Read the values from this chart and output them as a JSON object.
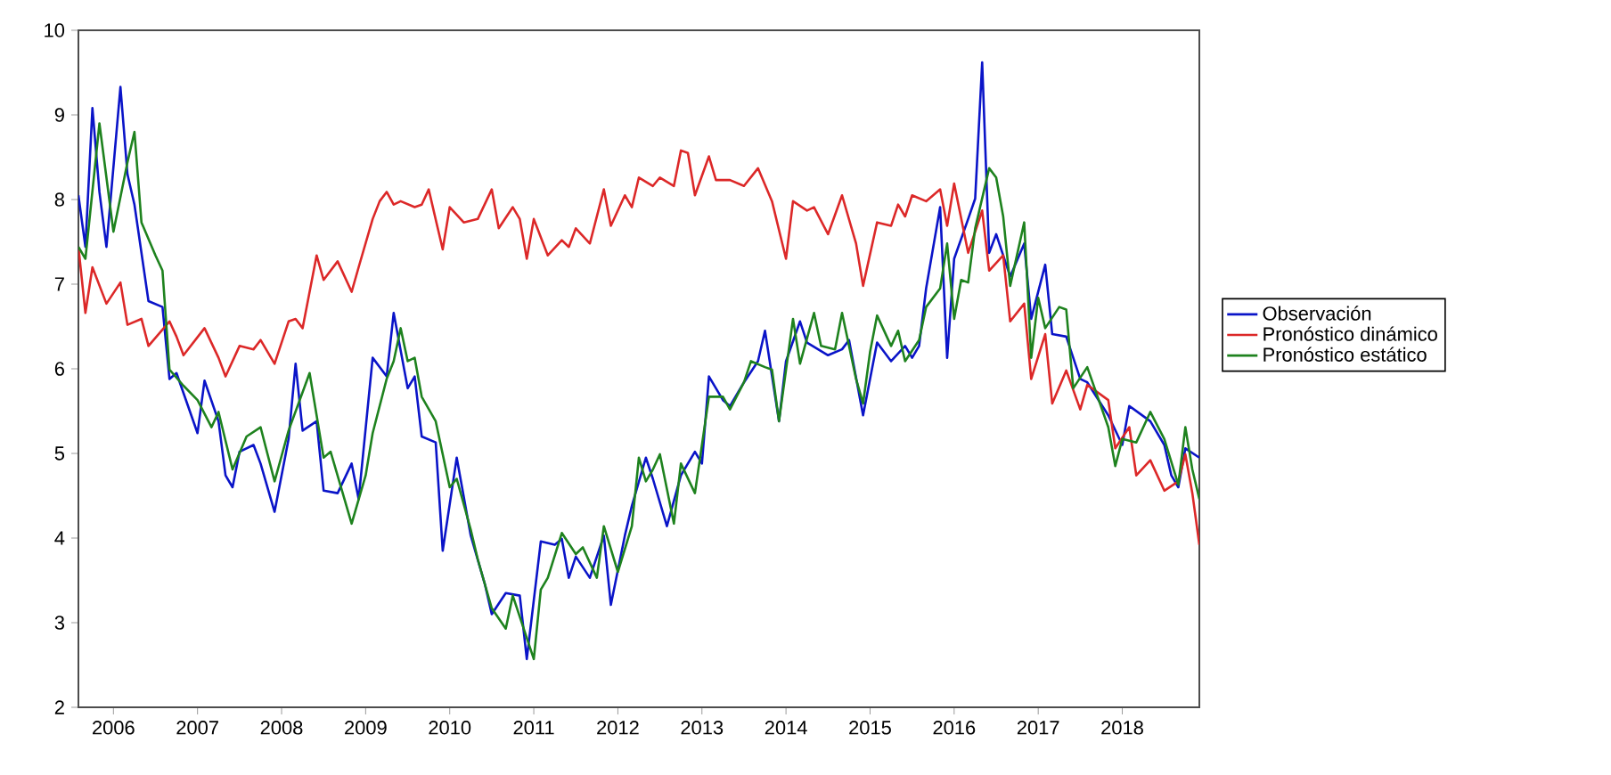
{
  "chart_data": {
    "type": "line",
    "xlim": [
      "2005-08",
      "2018-12"
    ],
    "ylim": [
      2,
      10
    ],
    "yticks": [
      2,
      3,
      4,
      5,
      6,
      7,
      8,
      9,
      10
    ],
    "xticks": [
      {
        "value": "2006-01",
        "label": "2006"
      },
      {
        "value": "2007-01",
        "label": "2007"
      },
      {
        "value": "2008-01",
        "label": "2008"
      },
      {
        "value": "2009-01",
        "label": "2009"
      },
      {
        "value": "2010-01",
        "label": "2010"
      },
      {
        "value": "2011-01",
        "label": "2011"
      },
      {
        "value": "2012-01",
        "label": "2012"
      },
      {
        "value": "2013-01",
        "label": "2013"
      },
      {
        "value": "2014-01",
        "label": "2014"
      },
      {
        "value": "2015-01",
        "label": "2015"
      },
      {
        "value": "2016-01",
        "label": "2016"
      },
      {
        "value": "2017-01",
        "label": "2017"
      },
      {
        "value": "2018-01",
        "label": "2018"
      }
    ],
    "legend": "right",
    "grid": false,
    "series": [
      {
        "name": "Observación",
        "color": "#0a14c8",
        "x": [
          "2005-08",
          "2005-09",
          "2005-10",
          "2005-11",
          "2005-12",
          "2006-02",
          "2006-03",
          "2006-04",
          "2006-06",
          "2006-08",
          "2006-09",
          "2006-10",
          "2007-01",
          "2007-02",
          "2007-04",
          "2007-05",
          "2007-06",
          "2007-07",
          "2007-09",
          "2007-10",
          "2007-12",
          "2008-02",
          "2008-03",
          "2008-04",
          "2008-06",
          "2008-07",
          "2008-09",
          "2008-11",
          "2008-12",
          "2009-02",
          "2009-04",
          "2009-05",
          "2009-07",
          "2009-08",
          "2009-09",
          "2009-11",
          "2009-12",
          "2010-02",
          "2010-04",
          "2010-06",
          "2010-07",
          "2010-09",
          "2010-11",
          "2010-12",
          "2011-02",
          "2011-04",
          "2011-05",
          "2011-06",
          "2011-07",
          "2011-09",
          "2011-11",
          "2011-12",
          "2012-02",
          "2012-03",
          "2012-05",
          "2012-06",
          "2012-08",
          "2012-10",
          "2012-12",
          "2013-01",
          "2013-02",
          "2013-04",
          "2013-05",
          "2013-07",
          "2013-09",
          "2013-10",
          "2013-12",
          "2014-01",
          "2014-03",
          "2014-04",
          "2014-07",
          "2014-09",
          "2014-10",
          "2014-12",
          "2015-02",
          "2015-04",
          "2015-06",
          "2015-07",
          "2015-08",
          "2015-09",
          "2015-11",
          "2015-12",
          "2016-01",
          "2016-03",
          "2016-04",
          "2016-05",
          "2016-06",
          "2016-07",
          "2016-08",
          "2016-09",
          "2016-11",
          "2016-12",
          "2017-02",
          "2017-03",
          "2017-05",
          "2017-07",
          "2017-08",
          "2017-11",
          "2018-01",
          "2018-02",
          "2018-05",
          "2018-07",
          "2018-08",
          "2018-09",
          "2018-10",
          "2018-12"
        ],
        "values": [
          8.05,
          7.44,
          9.08,
          8.09,
          7.44,
          9.33,
          8.3,
          7.94,
          6.8,
          6.73,
          5.88,
          5.95,
          5.24,
          5.86,
          5.38,
          4.74,
          4.6,
          5.02,
          5.1,
          4.88,
          4.31,
          5.17,
          6.06,
          5.27,
          5.38,
          4.56,
          4.53,
          4.88,
          4.46,
          6.13,
          5.91,
          6.66,
          5.77,
          5.91,
          5.2,
          5.13,
          3.85,
          4.95,
          4.03,
          3.46,
          3.1,
          3.35,
          3.32,
          2.57,
          3.96,
          3.92,
          3.99,
          3.53,
          3.78,
          3.53,
          4.03,
          3.21,
          4.03,
          4.38,
          4.95,
          4.7,
          4.14,
          4.74,
          5.02,
          4.88,
          5.91,
          5.63,
          5.56,
          5.84,
          6.09,
          6.45,
          5.38,
          6.09,
          6.56,
          6.31,
          6.16,
          6.23,
          6.34,
          5.45,
          6.31,
          6.09,
          6.27,
          6.13,
          6.27,
          6.95,
          7.91,
          6.13,
          7.3,
          7.77,
          8.01,
          9.62,
          7.37,
          7.59,
          7.34,
          7.09,
          7.48,
          6.59,
          7.23,
          6.41,
          6.38,
          5.88,
          5.84,
          5.45,
          5.1,
          5.56,
          5.38,
          5.1,
          4.74,
          4.6,
          5.06,
          4.95
        ]
      },
      {
        "name": "Pronóstico dinámico",
        "color": "#dc2828",
        "x": [
          "2005-08",
          "2005-09",
          "2005-10",
          "2005-12",
          "2006-02",
          "2006-03",
          "2006-05",
          "2006-06",
          "2006-09",
          "2006-10",
          "2006-11",
          "2007-02",
          "2007-04",
          "2007-05",
          "2007-07",
          "2007-09",
          "2007-10",
          "2007-12",
          "2008-02",
          "2008-03",
          "2008-04",
          "2008-06",
          "2008-07",
          "2008-09",
          "2008-11",
          "2008-12",
          "2009-02",
          "2009-03",
          "2009-04",
          "2009-05",
          "2009-06",
          "2009-08",
          "2009-09",
          "2009-10",
          "2009-12",
          "2010-01",
          "2010-03",
          "2010-05",
          "2010-07",
          "2010-08",
          "2010-10",
          "2010-11",
          "2010-12",
          "2011-01",
          "2011-03",
          "2011-05",
          "2011-06",
          "2011-07",
          "2011-09",
          "2011-11",
          "2011-12",
          "2012-02",
          "2012-03",
          "2012-04",
          "2012-06",
          "2012-07",
          "2012-09",
          "2012-10",
          "2012-11",
          "2012-12",
          "2013-02",
          "2013-03",
          "2013-05",
          "2013-07",
          "2013-09",
          "2013-11",
          "2014-01",
          "2014-02",
          "2014-04",
          "2014-05",
          "2014-07",
          "2014-09",
          "2014-11",
          "2014-12",
          "2015-02",
          "2015-04",
          "2015-05",
          "2015-06",
          "2015-07",
          "2015-09",
          "2015-11",
          "2015-12",
          "2016-01",
          "2016-03",
          "2016-05",
          "2016-06",
          "2016-08",
          "2016-09",
          "2016-11",
          "2016-12",
          "2017-02",
          "2017-03",
          "2017-05",
          "2017-07",
          "2017-08",
          "2017-11",
          "2017-12",
          "2018-02",
          "2018-03",
          "2018-05",
          "2018-07",
          "2018-09",
          "2018-10",
          "2018-11",
          "2018-12"
        ],
        "values": [
          7.44,
          6.66,
          7.2,
          6.77,
          7.02,
          6.52,
          6.59,
          6.27,
          6.56,
          6.38,
          6.16,
          6.48,
          6.13,
          5.91,
          6.27,
          6.23,
          6.34,
          6.06,
          6.56,
          6.59,
          6.48,
          7.34,
          7.05,
          7.27,
          6.91,
          7.2,
          7.77,
          7.98,
          8.09,
          7.94,
          7.98,
          7.91,
          7.94,
          8.12,
          7.41,
          7.91,
          7.73,
          7.77,
          8.12,
          7.66,
          7.91,
          7.77,
          7.3,
          7.77,
          7.34,
          7.52,
          7.44,
          7.66,
          7.48,
          8.12,
          7.69,
          8.05,
          7.91,
          8.26,
          8.16,
          8.26,
          8.16,
          8.58,
          8.55,
          8.05,
          8.51,
          8.23,
          8.23,
          8.16,
          8.37,
          7.98,
          7.3,
          7.98,
          7.87,
          7.91,
          7.59,
          8.05,
          7.48,
          6.98,
          7.73,
          7.69,
          7.94,
          7.8,
          8.05,
          7.98,
          8.12,
          7.69,
          8.19,
          7.37,
          7.87,
          7.16,
          7.34,
          6.56,
          6.77,
          5.88,
          6.41,
          5.59,
          5.98,
          5.52,
          5.81,
          5.63,
          5.06,
          5.31,
          4.74,
          4.92,
          4.56,
          4.67,
          4.99,
          4.53,
          3.92
        ]
      },
      {
        "name": "Pronóstico estático",
        "color": "#1e821e",
        "x": [
          "2005-08",
          "2005-09",
          "2005-11",
          "2006-01",
          "2006-03",
          "2006-04",
          "2006-05",
          "2006-07",
          "2006-08",
          "2006-09",
          "2006-11",
          "2007-01",
          "2007-03",
          "2007-04",
          "2007-06",
          "2007-08",
          "2007-10",
          "2007-12",
          "2008-02",
          "2008-05",
          "2008-07",
          "2008-08",
          "2008-11",
          "2009-01",
          "2009-02",
          "2009-04",
          "2009-05",
          "2009-06",
          "2009-07",
          "2009-08",
          "2009-09",
          "2009-11",
          "2010-01",
          "2010-02",
          "2010-04",
          "2010-05",
          "2010-07",
          "2010-09",
          "2010-10",
          "2011-01",
          "2011-02",
          "2011-03",
          "2011-05",
          "2011-07",
          "2011-08",
          "2011-10",
          "2011-11",
          "2012-01",
          "2012-03",
          "2012-04",
          "2012-05",
          "2012-06",
          "2012-07",
          "2012-09",
          "2012-10",
          "2012-12",
          "2013-02",
          "2013-04",
          "2013-05",
          "2013-07",
          "2013-08",
          "2013-10",
          "2013-11",
          "2013-12",
          "2014-02",
          "2014-03",
          "2014-05",
          "2014-06",
          "2014-08",
          "2014-09",
          "2014-11",
          "2014-12",
          "2015-01",
          "2015-02",
          "2015-04",
          "2015-05",
          "2015-06",
          "2015-08",
          "2015-09",
          "2015-11",
          "2015-12",
          "2016-01",
          "2016-02",
          "2016-03",
          "2016-04",
          "2016-06",
          "2016-07",
          "2016-08",
          "2016-09",
          "2016-11",
          "2016-12",
          "2017-01",
          "2017-02",
          "2017-04",
          "2017-05",
          "2017-06",
          "2017-08",
          "2017-11",
          "2017-12",
          "2018-01",
          "2018-03",
          "2018-05",
          "2018-07",
          "2018-09",
          "2018-10",
          "2018-11",
          "2018-12"
        ],
        "values": [
          7.44,
          7.3,
          8.9,
          7.62,
          8.44,
          8.8,
          7.73,
          7.34,
          7.16,
          5.99,
          5.8,
          5.63,
          5.31,
          5.49,
          4.81,
          5.2,
          5.31,
          4.67,
          5.27,
          5.95,
          4.95,
          5.02,
          4.17,
          4.74,
          5.24,
          5.88,
          6.09,
          6.48,
          6.09,
          6.13,
          5.67,
          5.38,
          4.6,
          4.7,
          4.1,
          3.75,
          3.17,
          2.93,
          3.32,
          2.57,
          3.39,
          3.53,
          4.06,
          3.81,
          3.89,
          3.53,
          4.14,
          3.6,
          4.14,
          4.95,
          4.67,
          4.81,
          4.99,
          4.17,
          4.88,
          4.53,
          5.67,
          5.67,
          5.52,
          5.84,
          6.09,
          6.02,
          5.99,
          5.38,
          6.59,
          6.06,
          6.66,
          6.27,
          6.23,
          6.66,
          5.88,
          5.59,
          6.2,
          6.63,
          6.27,
          6.45,
          6.09,
          6.34,
          6.73,
          6.95,
          7.48,
          6.59,
          7.05,
          7.02,
          7.66,
          8.37,
          8.26,
          7.8,
          6.98,
          7.73,
          6.13,
          6.84,
          6.48,
          6.73,
          6.7,
          5.77,
          6.02,
          5.31,
          4.85,
          5.17,
          5.13,
          5.49,
          5.17,
          4.63,
          5.31,
          4.81,
          4.46
        ]
      }
    ]
  }
}
